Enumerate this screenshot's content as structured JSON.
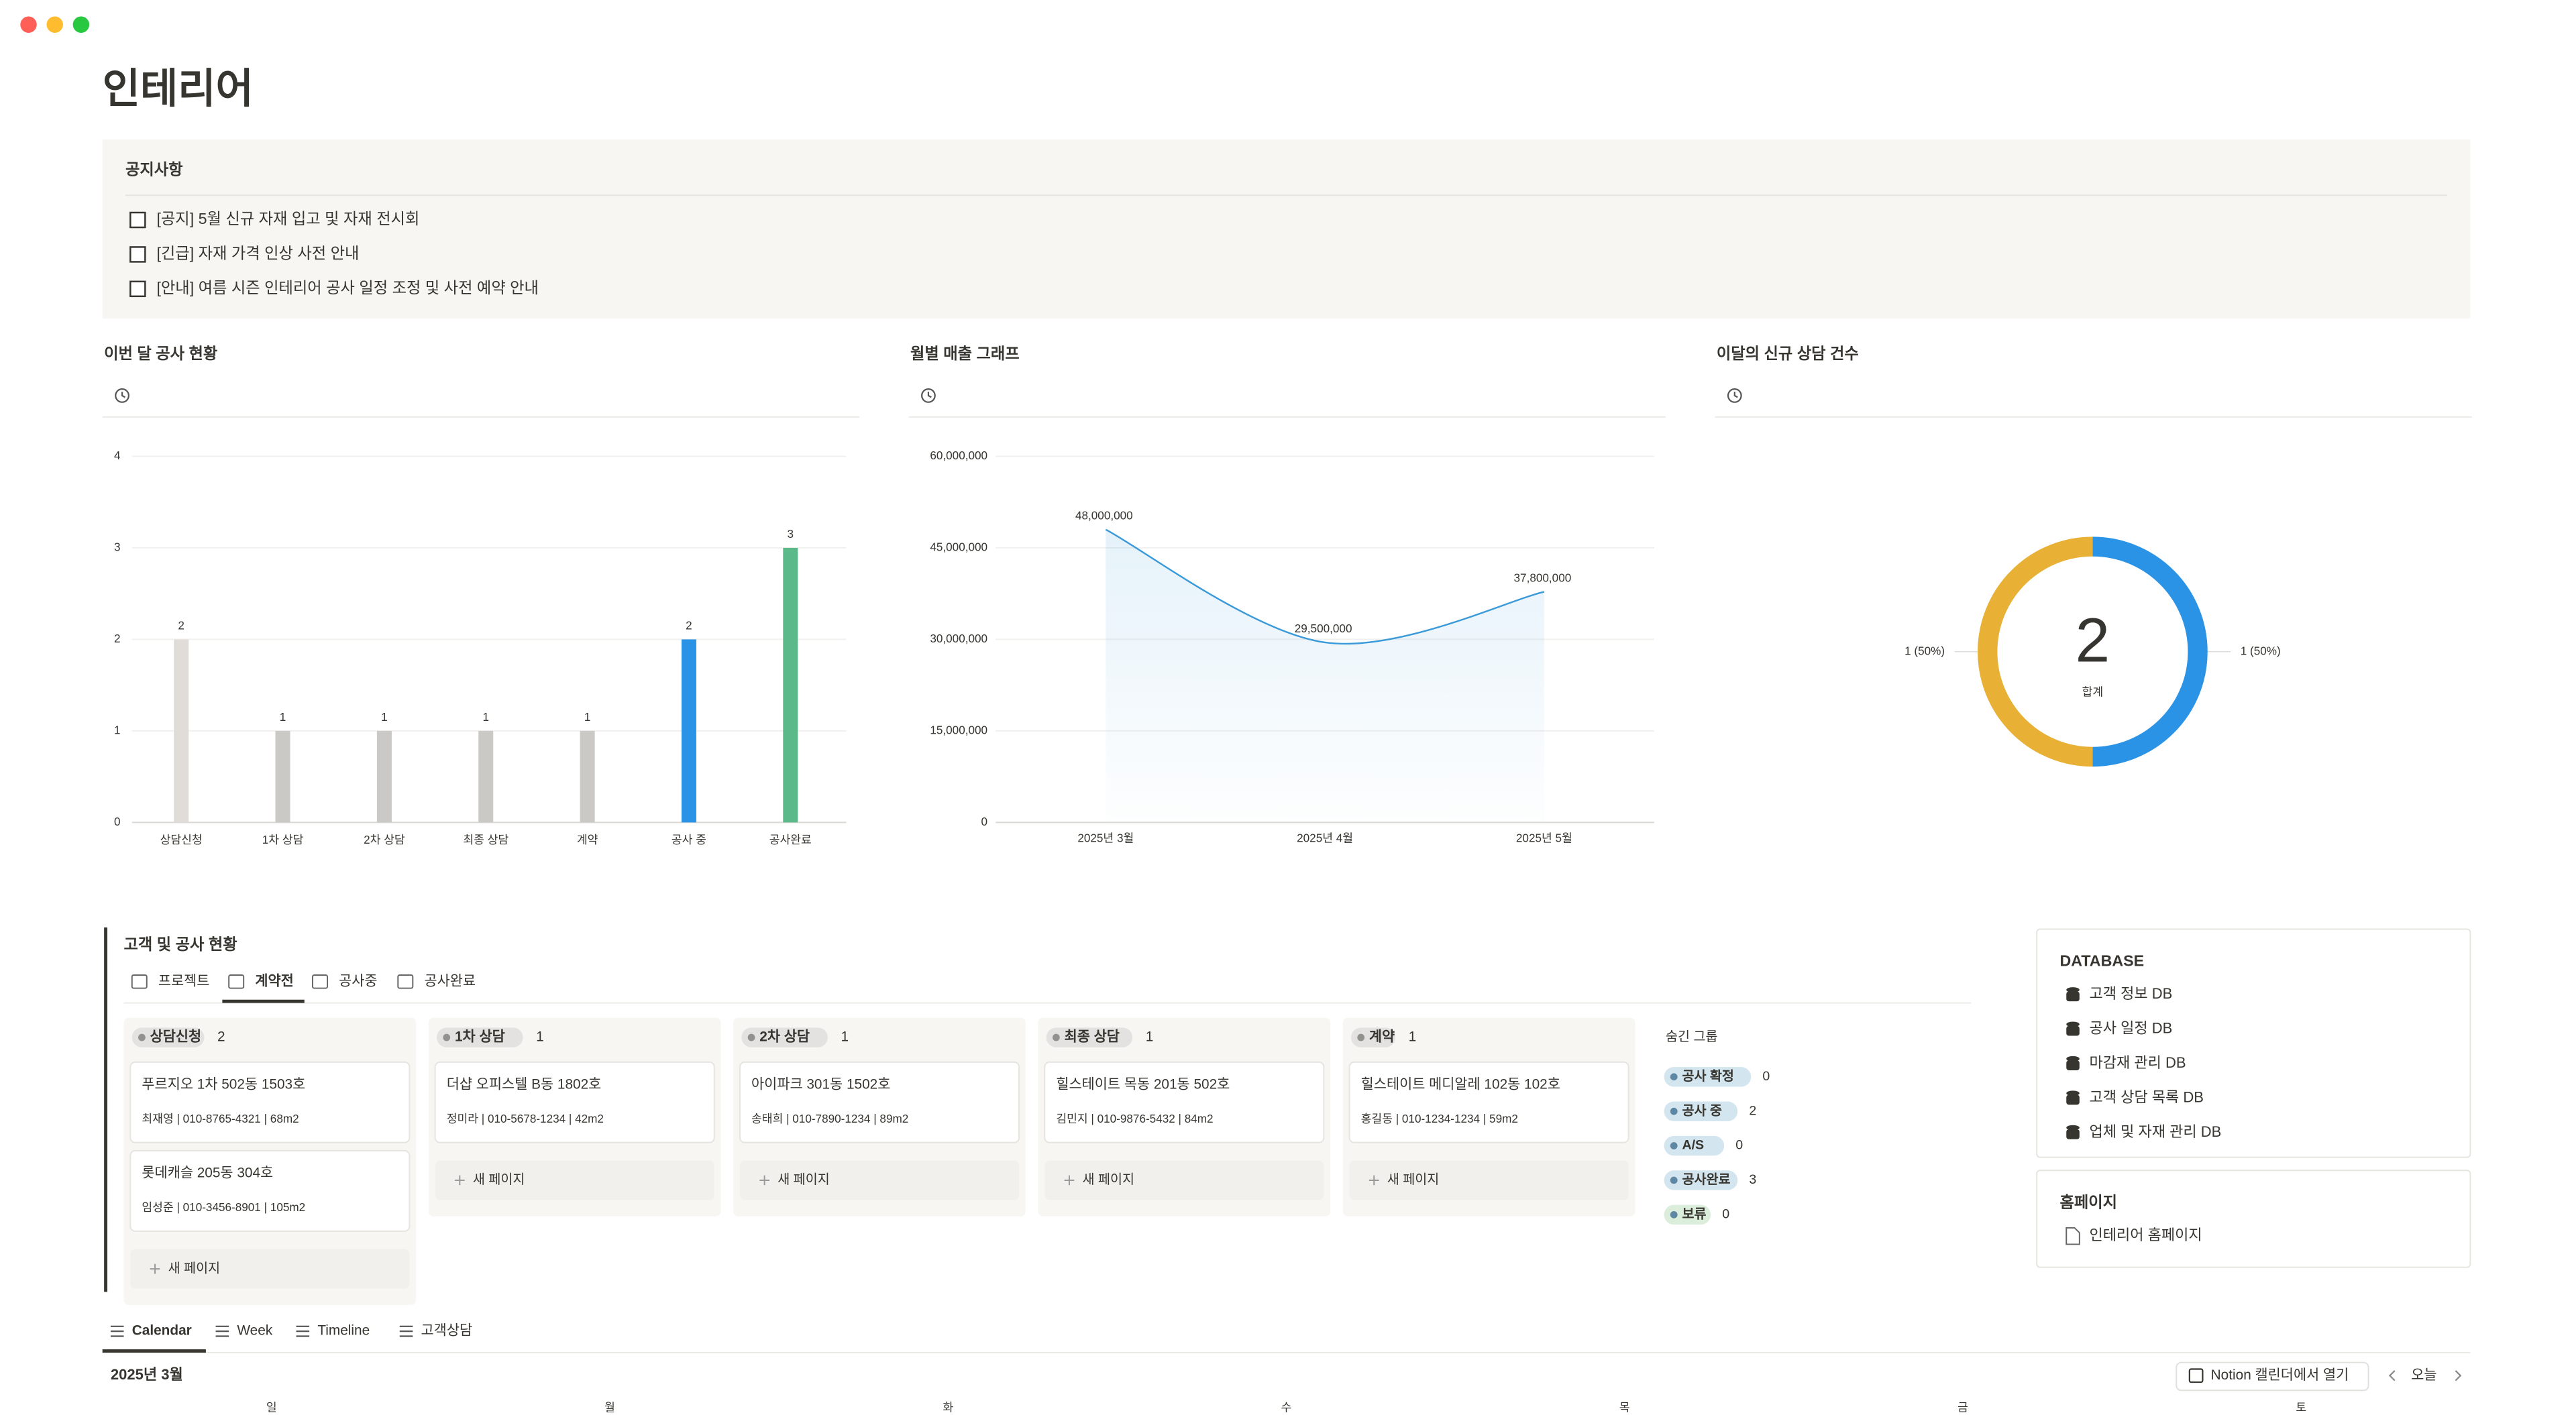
{
  "page": {
    "title": "인테리어"
  },
  "notice": {
    "heading": "공지사항",
    "items": [
      "[공지] 5월 신규 자재 입고 및 자재 전시회",
      "[긴급] 자재 가격 인상 사전 안내",
      "[안내] 여름 시즌 인테리어 공사 일정 조정 및 사전 예약 안내"
    ]
  },
  "charts": [
    {
      "type": "bar",
      "title": "이번 달 공사 현황",
      "categories": [
        "상담신청",
        "1차 상담",
        "2차 상담",
        "최종 상담",
        "계약",
        "공사 중",
        "공사완료"
      ],
      "values": [
        2,
        1,
        1,
        1,
        1,
        2,
        3
      ],
      "colors": [
        "#e0ddd8",
        "#cbc9c5",
        "#cbc9c5",
        "#cbc9c5",
        "#cbc9c5",
        "#2b93e5",
        "#5cb98a"
      ],
      "ylim": [
        0,
        4
      ],
      "yticks": [
        0,
        1,
        2,
        3,
        4
      ],
      "grid": true
    },
    {
      "type": "line",
      "title": "월별 매출 그래프",
      "categories": [
        "2025년 3월",
        "2025년 4월",
        "2025년 5월"
      ],
      "values": [
        48000000,
        29500000,
        37800000
      ],
      "value_labels": [
        "48,000,000",
        "29,500,000",
        "37,800,000"
      ],
      "color": "#3a9ad9",
      "ylim": [
        0,
        60000000
      ],
      "yticks": [
        0,
        {
          "value": 15000000,
          "label": "15,000,000"
        },
        {
          "value": 30000000,
          "label": "30,000,000"
        },
        {
          "value": 45000000,
          "label": "45,000,000"
        },
        {
          "value": 60000000,
          "label": "60,000,000"
        }
      ],
      "grid": true
    },
    {
      "type": "donut",
      "title": "이달의 신규 상담 건수",
      "values": [
        1,
        1
      ],
      "value_labels": [
        "1 (50%)",
        "1 (50%)"
      ],
      "colors": [
        "#2b93e5",
        "#e8b135"
      ],
      "total": 2,
      "total_label": "합계"
    }
  ],
  "board": {
    "title": "고객 및 공사 현황",
    "tabs": [
      "프로젝트",
      "계약전",
      "공사중",
      "공사완료"
    ],
    "active_tab": 1,
    "new_page_label": "새 페이지",
    "columns": [
      {
        "name": "상담신청",
        "count": 2,
        "cards": [
          {
            "title": "푸르지오 1차 502동 1503호",
            "details": "최재영 | 010-8765-4321 | 68m2"
          },
          {
            "title": "롯데캐슬 205동 304호",
            "details": "임성준 | 010-3456-8901 | 105m2"
          }
        ]
      },
      {
        "name": "1차 상담",
        "count": 1,
        "cards": [
          {
            "title": "더샵 오피스텔 B동 1802호",
            "details": "정미라 | 010-5678-1234 | 42m2"
          }
        ]
      },
      {
        "name": "2차 상담",
        "count": 1,
        "cards": [
          {
            "title": "아이파크 301동 1502호",
            "details": "송태희 | 010-7890-1234 | 89m2"
          }
        ]
      },
      {
        "name": "최종 상담",
        "count": 1,
        "cards": [
          {
            "title": "힐스테이트 목동 201동 502호",
            "details": "김민지 | 010-9876-5432 | 84m2"
          }
        ]
      },
      {
        "name": "계약",
        "count": 1,
        "cards": [
          {
            "title": "힐스테이트 메디알레 102동 102호",
            "details": "홍길동 | 010-1234-1234 | 59m2"
          }
        ]
      }
    ],
    "hidden_groups_label": "숨긴 그룹",
    "hidden_groups": [
      {
        "name": "공사 확정",
        "count": 0,
        "color": "#d3e5ef"
      },
      {
        "name": "공사 중",
        "count": 2,
        "color": "#d3e5ef"
      },
      {
        "name": "A/S",
        "count": 0,
        "color": "#d3e5ef"
      },
      {
        "name": "공사완료",
        "count": 3,
        "color": "#d3e5ef"
      },
      {
        "name": "보류",
        "count": 0,
        "color": "#dbeddb"
      }
    ]
  },
  "sidebar": {
    "database_heading": "DATABASE",
    "databases": [
      "고객 정보 DB",
      "공사 일정 DB",
      "마감재 관리 DB",
      "고객 상담 목록 DB",
      "업체 및 자재 관리 DB"
    ],
    "homepage_heading": "홈페이지",
    "homepage_link": "인테리어 홈페이지"
  },
  "calendar": {
    "tabs": [
      "Calendar",
      "Week",
      "Timeline",
      "고객상담"
    ],
    "month": "2025년 3월",
    "open_button": "Notion 캘린더에서 열기",
    "today": "오늘",
    "weekdays": [
      "일",
      "월",
      "화",
      "수",
      "목",
      "금",
      "토"
    ]
  }
}
